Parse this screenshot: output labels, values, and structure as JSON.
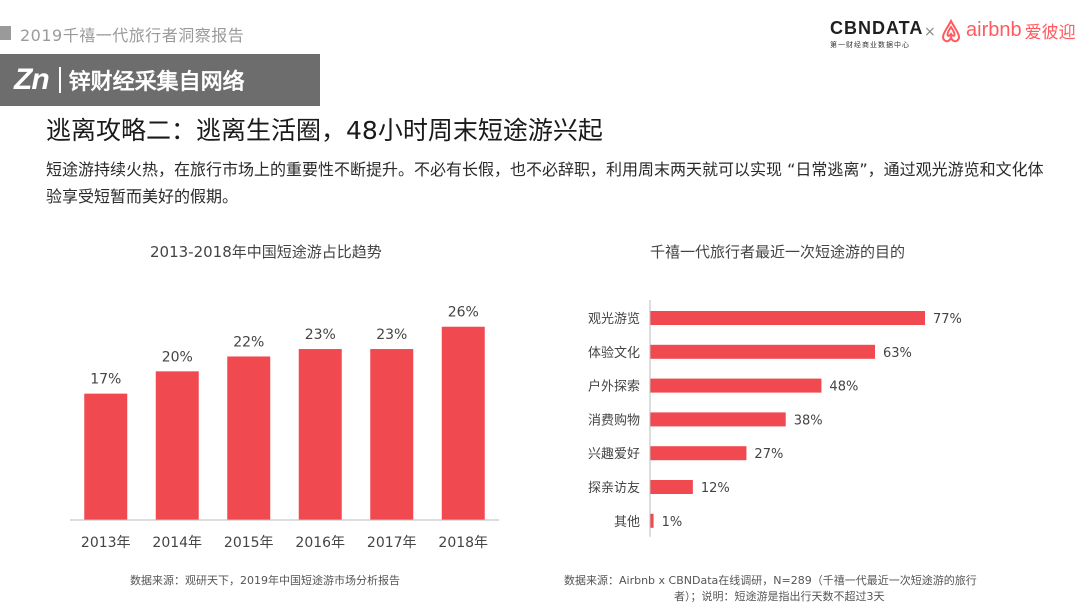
{
  "header": {
    "report_title": "2019千禧一代旅行者洞察报告",
    "cbn_logo_text": "CBNDATA",
    "cbn_logo_sub": "第一财经商业数据中心",
    "times": "×",
    "airbnb_name": "airbnb",
    "airbnb_cn": "爱彼迎"
  },
  "watermark": {
    "brand": "Zn",
    "text": "锌财经采集自网络"
  },
  "headline": "逃离攻略二：逃离生活圈，48小时周末短途游兴起",
  "description": "短途游持续火热，在旅行市场上的重要性不断提升。不必有长假，也不必辞职，利用周末两天就可以实现 “日常逃离”，通过观光游览和文化体验享受短暂而美好的假期。",
  "chart_data": [
    {
      "type": "bar",
      "title": "2013-2018年中国短途游占比趋势",
      "categories": [
        "2013年",
        "2014年",
        "2015年",
        "2016年",
        "2017年",
        "2018年"
      ],
      "values": [
        17,
        20,
        22,
        23,
        23,
        26
      ],
      "value_labels": [
        "17%",
        "20%",
        "22%",
        "23%",
        "23%",
        "26%"
      ],
      "unit": "%",
      "ylim": [
        0,
        30
      ],
      "color": "#f04a50",
      "source": "数据来源：观研天下，2019年中国短途游市场分析报告"
    },
    {
      "type": "bar",
      "orientation": "horizontal",
      "title": "千禧一代旅行者最近一次短途游的目的",
      "categories": [
        "观光游览",
        "体验文化",
        "户外探索",
        "消费购物",
        "兴趣爱好",
        "探亲访友",
        "其他"
      ],
      "values": [
        77,
        63,
        48,
        38,
        27,
        12,
        1
      ],
      "value_labels": [
        "77%",
        "63%",
        "48%",
        "38%",
        "27%",
        "12%",
        "1%"
      ],
      "unit": "%",
      "xlim": [
        0,
        100
      ],
      "color": "#f04a50",
      "source_line1": "数据来源：Airbnb x CBNData在线调研，N=289（千禧一代最近一次短途游的旅行",
      "source_line2": "者）；说明：短途游是指出行天数不超过3天"
    }
  ],
  "colors": {
    "accent": "#f04a50",
    "airbnb": "#ff5a5f",
    "muted": "#9a9a9a"
  }
}
